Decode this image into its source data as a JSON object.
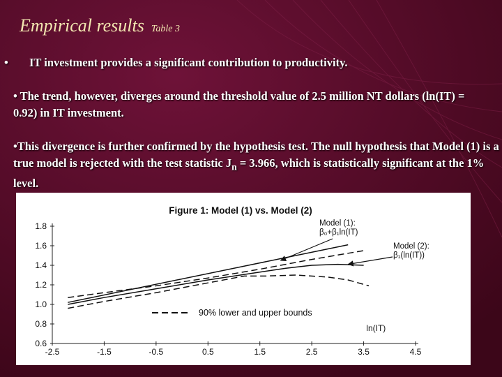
{
  "slide": {
    "title": "Empirical results",
    "title_sub": "Table 3",
    "bullet1_marker": "•",
    "bullet1": "IT investment provides a significant contribution to productivity.",
    "bullet2": "• The trend, however, diverges around the threshold value of 2.5 million NT dollars (ln(IT) = 0.92) in IT investment.",
    "bullet3_a": "•This divergence is further confirmed by the hypothesis test. The null hypothesis that Model (1) is a true model is rejected with the test statistic J",
    "bullet3_sub": "n",
    "bullet3_b": " = 3.966, which is statistically significant at the 1% level."
  },
  "colors": {
    "background": "#5a0a2c",
    "title": "#f2e6b0",
    "text": "#ffffff"
  },
  "chart_data": {
    "type": "line",
    "title": "Figure 1: Model (1) vs. Model (2)",
    "xlabel": "ln(IT)",
    "ylabel": "",
    "xlim": [
      -2.5,
      4.5
    ],
    "ylim": [
      0.6,
      1.8
    ],
    "x_ticks": [
      "-2.5",
      "-1.5",
      "-0.5",
      "0.5",
      "1.5",
      "2.5",
      "3.5",
      "4.5"
    ],
    "x_tick_values": [
      -2.5,
      -1.5,
      -0.5,
      0.5,
      1.5,
      2.5,
      3.5,
      4.5
    ],
    "y_ticks": [
      "0.6",
      "0.8",
      "1.0",
      "1.2",
      "1.4",
      "1.6",
      "1.8"
    ],
    "y_tick_values": [
      0.6,
      0.8,
      1.0,
      1.2,
      1.4,
      1.6,
      1.8
    ],
    "series": [
      {
        "key": "model1",
        "style": "solid",
        "x": [
          -2.2,
          3.2
        ],
        "y": [
          1.02,
          1.61
        ]
      },
      {
        "key": "model2",
        "style": "solid",
        "x": [
          -2.2,
          -1.5,
          -0.5,
          0.5,
          1.5,
          2.0,
          2.5,
          3.0,
          3.5
        ],
        "y": [
          1.0,
          1.07,
          1.16,
          1.25,
          1.33,
          1.37,
          1.4,
          1.41,
          1.4
        ]
      },
      {
        "key": "upper",
        "style": "dashed",
        "x": [
          -2.2,
          -1.5,
          -0.5,
          0.5,
          1.5,
          2.5,
          3.5
        ],
        "y": [
          1.07,
          1.12,
          1.19,
          1.27,
          1.36,
          1.46,
          1.55
        ]
      },
      {
        "key": "lower",
        "style": "dashed",
        "x": [
          -2.2,
          -1.5,
          -0.5,
          0.5,
          1.2,
          1.6,
          2.2,
          2.8,
          3.2,
          3.6
        ],
        "y": [
          0.96,
          1.03,
          1.12,
          1.22,
          1.29,
          1.29,
          1.3,
          1.28,
          1.25,
          1.19
        ]
      }
    ],
    "annotations": [
      {
        "key": "model1",
        "lines": [
          "Model (1):",
          "β₀+β₁ln(IT)"
        ],
        "arrow_to": [
          1.9,
          1.45
        ]
      },
      {
        "key": "model2",
        "lines": [
          "Model (2):",
          "β₁(ln(IT))"
        ],
        "arrow_to": [
          3.2,
          1.41
        ]
      }
    ],
    "legend": {
      "label": "90% lower and upper bounds",
      "style": "dashed",
      "position": "bottom-center"
    }
  }
}
